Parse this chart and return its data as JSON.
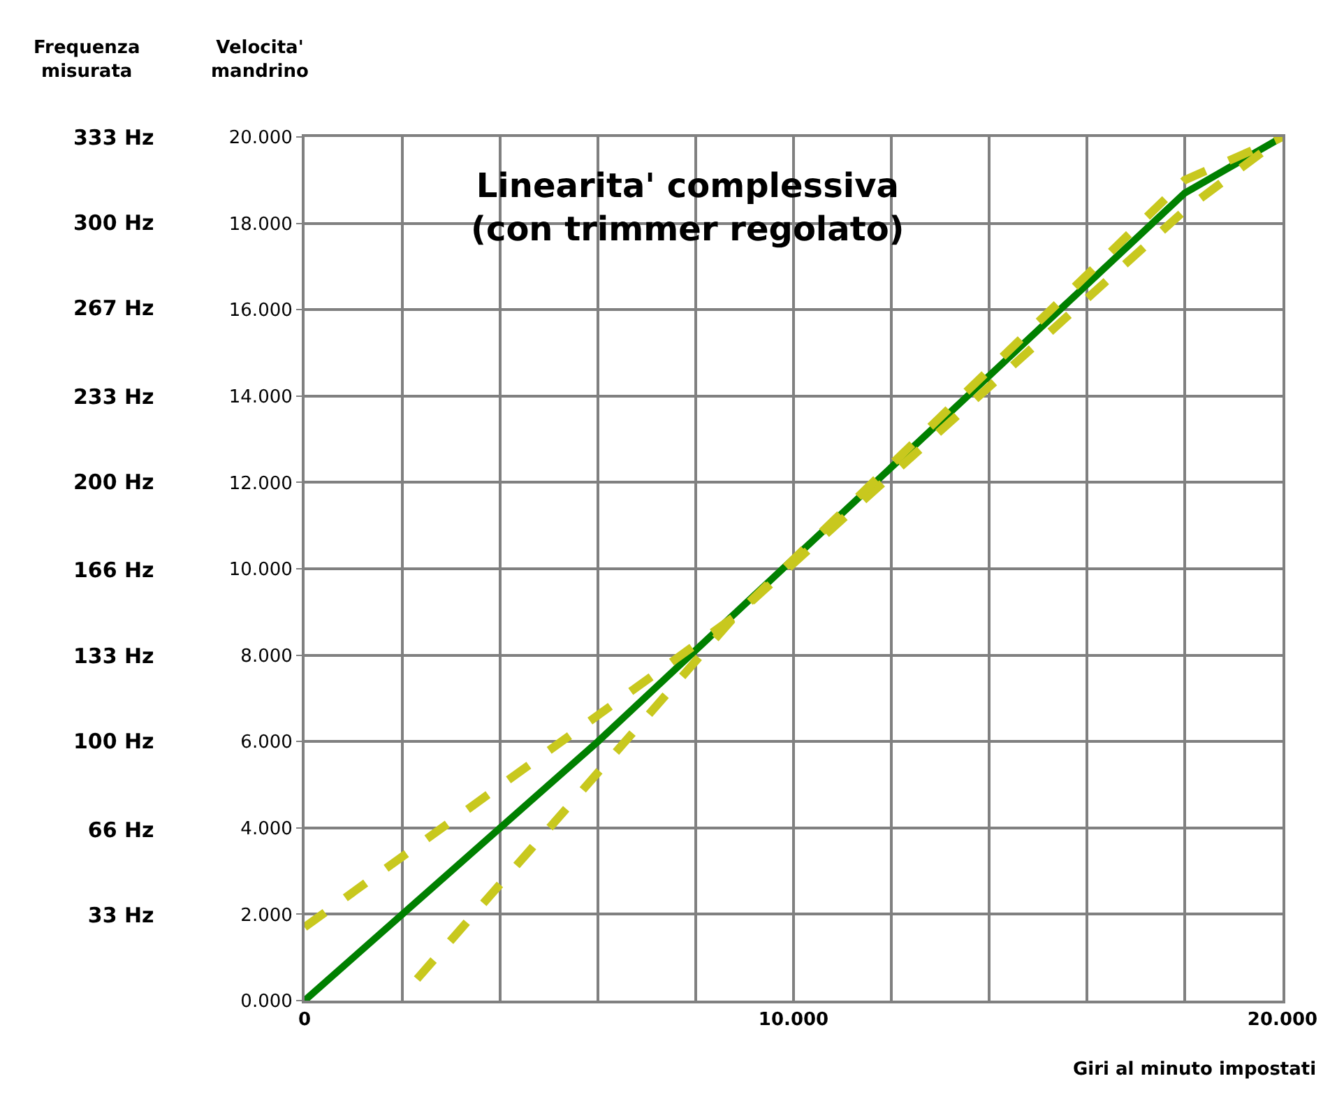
{
  "chart_data": {
    "type": "line",
    "title": "Linearita' complessiva\n(con trimmer regolato)",
    "xlabel": "Giri al minuto impostati",
    "ylabel": "Velocita'\nmandrino",
    "y2label": "Frequenza\nmisurata",
    "series": [
      {
        "color": "#008000",
        "x": [
          0,
          6,
          18,
          20
        ],
        "values": [
          0,
          6,
          18.7,
          20
        ],
        "line_style": "solid"
      },
      {
        "color": "#c8c81e",
        "x": [
          0,
          8.8,
          18,
          20
        ],
        "values": [
          1.7,
          8.9,
          18.3,
          20
        ],
        "line_style": "dashed"
      },
      {
        "color": "#c8c81e",
        "x": [
          2.3,
          8.8,
          18,
          20
        ],
        "values": [
          0.5,
          8.9,
          19,
          20
        ],
        "line_style": "dashed"
      }
    ],
    "xlim": [
      0,
      20
    ],
    "xticks": [
      0,
      {
        "value": 2,
        "label": null
      },
      {
        "value": 4,
        "label": null
      },
      {
        "value": 6,
        "label": null
      },
      {
        "value": 8,
        "label": null
      },
      {
        "value": 10,
        "label": "10.000"
      },
      {
        "value": 12,
        "label": null
      },
      {
        "value": 14,
        "label": null
      },
      {
        "value": 16,
        "label": null
      },
      {
        "value": 18,
        "label": null
      },
      {
        "value": 20,
        "label": "20.000"
      }
    ],
    "ylim": [
      0,
      20
    ],
    "yticks": [
      {
        "value": 0,
        "label": "0.000"
      },
      {
        "value": 2,
        "label": "2.000"
      },
      {
        "value": 4,
        "label": "4.000"
      },
      {
        "value": 6,
        "label": "6.000"
      },
      {
        "value": 8,
        "label": "8.000"
      },
      {
        "value": 10,
        "label": "10.000"
      },
      {
        "value": 12,
        "label": "12.000"
      },
      {
        "value": 14,
        "label": "14.000"
      },
      {
        "value": 16,
        "label": "16.000"
      },
      {
        "value": 18,
        "label": "18.000"
      },
      {
        "value": 20,
        "label": "20.000"
      }
    ],
    "y2lim": [
      0,
      333
    ],
    "y2ticks": [
      {
        "value": 33,
        "label": "33 Hz"
      },
      {
        "value": 66,
        "label": "66 Hz"
      },
      {
        "value": 100,
        "label": "100 Hz"
      },
      {
        "value": 133,
        "label": "133 Hz"
      },
      {
        "value": 166,
        "label": "166 Hz"
      },
      {
        "value": 200,
        "label": "200 Hz"
      },
      {
        "value": 233,
        "label": "233 Hz"
      },
      {
        "value": 267,
        "label": "267 Hz"
      },
      {
        "value": 300,
        "label": "300 Hz"
      },
      {
        "value": 333,
        "label": "333 Hz"
      }
    ],
    "grid": true,
    "marker": "none"
  }
}
